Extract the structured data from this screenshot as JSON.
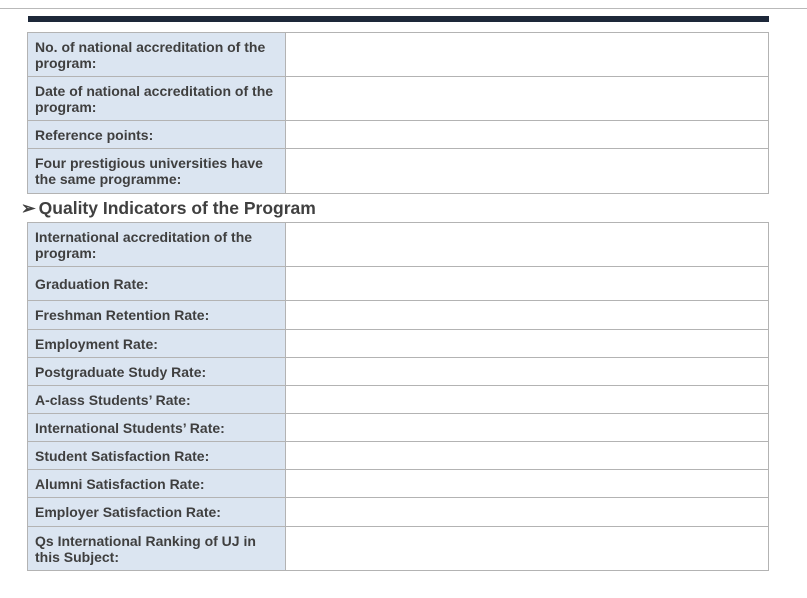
{
  "accreditation_table": {
    "rows": [
      {
        "label": "No. of national accreditation of the program:",
        "value": ""
      },
      {
        "label": "Date of national accreditation of the program:",
        "value": ""
      },
      {
        "label": "Reference points:",
        "value": ""
      },
      {
        "label": "Four prestigious universities have the same programme:",
        "value": ""
      }
    ]
  },
  "quality_section": {
    "bullet": "➢",
    "heading": "Quality Indicators of the Program"
  },
  "quality_table": {
    "rows": [
      {
        "label": "International accreditation of the program:",
        "value": ""
      },
      {
        "label": "Graduation Rate:",
        "value": ""
      },
      {
        "label": "Freshman Retention Rate:",
        "value": ""
      },
      {
        "label": "Employment Rate:",
        "value": ""
      },
      {
        "label": "Postgraduate Study Rate:",
        "value": ""
      },
      {
        "label": "A-class Students’ Rate:",
        "value": ""
      },
      {
        "label": "International Students’ Rate:",
        "value": ""
      },
      {
        "label": "Student Satisfaction Rate:",
        "value": ""
      },
      {
        "label": "Alumni Satisfaction Rate:",
        "value": ""
      },
      {
        "label": "Employer Satisfaction Rate:",
        "value": ""
      },
      {
        "label": "Qs International Ranking of UJ in this Subject:",
        "value": ""
      }
    ]
  },
  "colors": {
    "header_bar": "#1d2839",
    "label_fill": "#dbe5f1",
    "border": "#b3b3b3",
    "text": "#404040"
  }
}
